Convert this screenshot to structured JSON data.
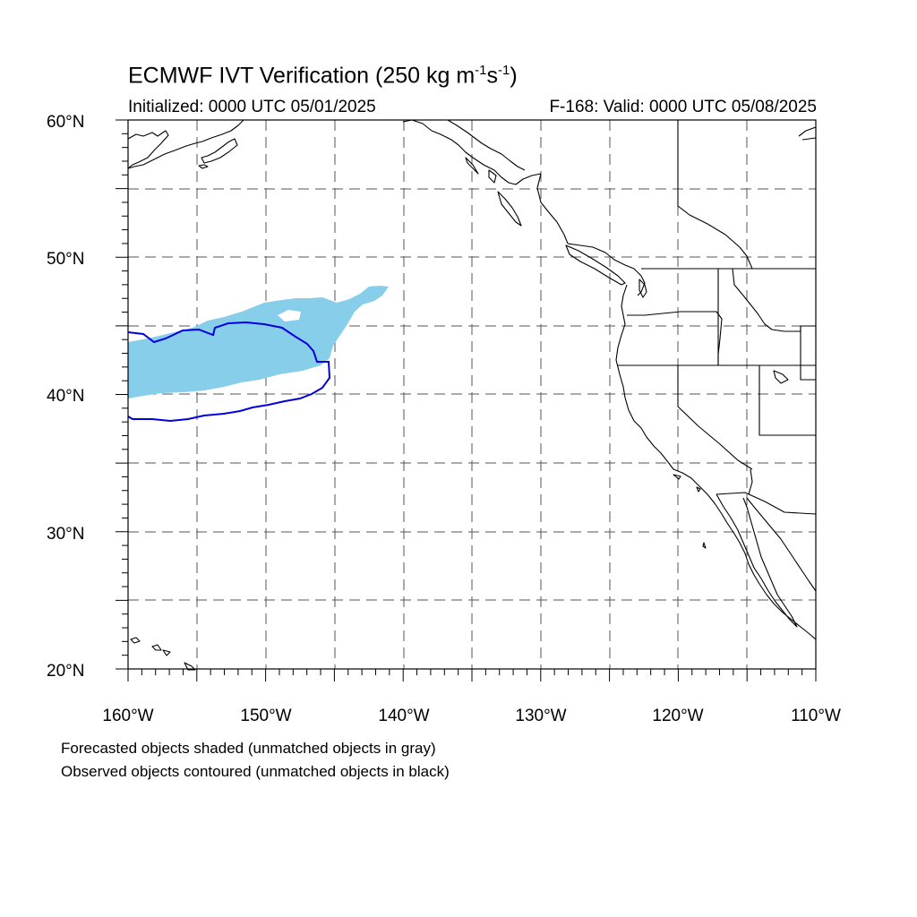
{
  "header": {
    "title_main": "ECMWF IVT Verification (250 kg m",
    "title_exp1": "-1",
    "title_mid": "s",
    "title_exp2": "-1",
    "title_end": ")",
    "initialized": "Initialized: 0000 UTC 05/01/2025",
    "valid": "F-168: Valid: 0000 UTC 05/08/2025"
  },
  "axes": {
    "lon_labels": [
      "160°W",
      "150°W",
      "140°W",
      "130°W",
      "120°W",
      "110°W"
    ],
    "lat_labels": [
      "20°N",
      "30°N",
      "40°N",
      "50°N",
      "60°N"
    ],
    "lon_range": [
      -160,
      -110
    ],
    "lat_range": [
      20,
      60
    ],
    "grid": "dashed every 5 degrees"
  },
  "legend": {
    "line1": "Forecasted objects shaded (unmatched objects in gray)",
    "line2": "Observed objects contoured (unmatched objects in black)"
  },
  "colors": {
    "forecast_shade": "#87ceeb",
    "observed_contour": "#0000e0",
    "coastline": "#000000",
    "grid": "#555555"
  }
}
